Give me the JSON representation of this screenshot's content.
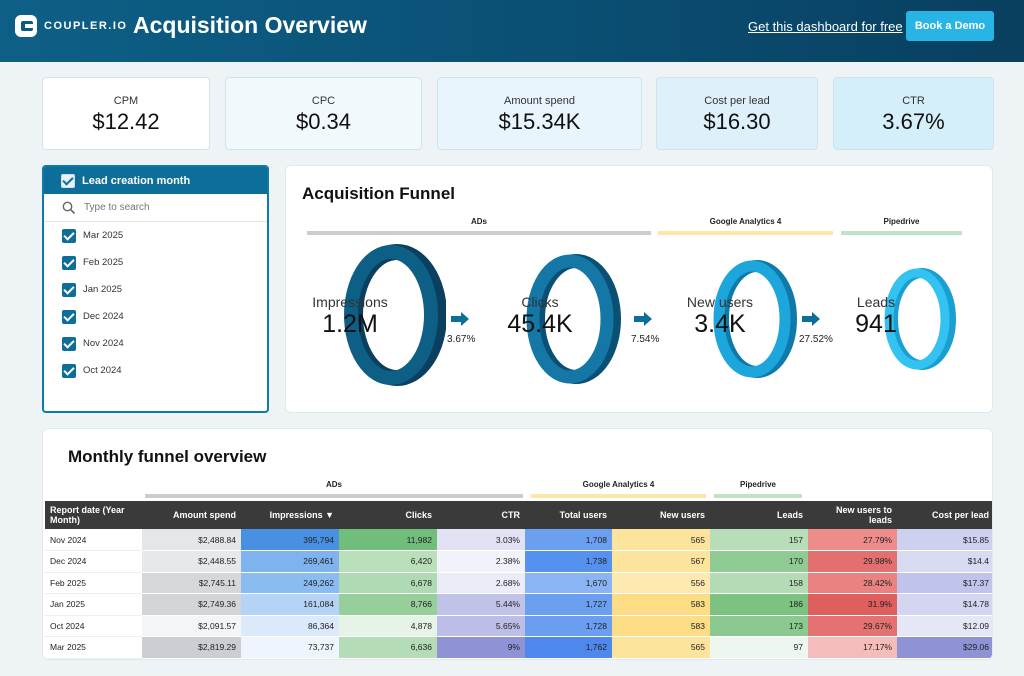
{
  "header": {
    "brand": "COUPLER.IO",
    "title": "Acquisition Overview",
    "link_label": "Get this dashboard for free",
    "demo_button": "Book a Demo"
  },
  "kpis": [
    {
      "label": "CPM",
      "value": "$12.42"
    },
    {
      "label": "CPC",
      "value": "$0.34"
    },
    {
      "label": "Amount spend",
      "value": "$15.34K"
    },
    {
      "label": "Cost per lead",
      "value": "$16.30"
    },
    {
      "label": "CTR",
      "value": "3.67%"
    }
  ],
  "filter": {
    "title": "Lead creation month",
    "search_placeholder": "Type to search",
    "items": [
      "Mar 2025",
      "Feb 2025",
      "Jan 2025",
      "Dec 2024",
      "Nov 2024",
      "Oct 2024"
    ]
  },
  "funnel": {
    "title": "Acquisition Funnel",
    "groups": [
      "ADs",
      "Google Analytics 4",
      "Pipedrive"
    ],
    "stages": [
      {
        "label": "Impressions",
        "value": "1.2M"
      },
      {
        "label": "Clicks",
        "value": "45.4K"
      },
      {
        "label": "New users",
        "value": "3.4K"
      },
      {
        "label": "Leads",
        "value": "941"
      }
    ],
    "conversions": [
      "3.67%",
      "7.54%",
      "27.52%"
    ]
  },
  "table": {
    "title": "Monthly funnel overview",
    "groups": [
      "ADs",
      "Google Analytics 4",
      "Pipedrive"
    ],
    "columns": [
      "Report date (Year Month)",
      "Amount spend",
      "Impressions ▼",
      "Clicks",
      "CTR",
      "Total users",
      "New users",
      "Leads",
      "New users to leads",
      "Cost per lead"
    ],
    "rows": [
      [
        "Nov 2024",
        "$2,488.84",
        "395,794",
        "11,982",
        "3.03%",
        "1,708",
        "565",
        "157",
        "27.79%",
        "$15.85"
      ],
      [
        "Dec 2024",
        "$2,448.55",
        "269,461",
        "6,420",
        "2.38%",
        "1,738",
        "567",
        "170",
        "29.98%",
        "$14.4"
      ],
      [
        "Feb 2025",
        "$2,745.11",
        "249,262",
        "6,678",
        "2.68%",
        "1,670",
        "556",
        "158",
        "28.42%",
        "$17.37"
      ],
      [
        "Jan 2025",
        "$2,749.36",
        "161,084",
        "8,766",
        "5.44%",
        "1,727",
        "583",
        "186",
        "31.9%",
        "$14.78"
      ],
      [
        "Oct 2024",
        "$2,091.57",
        "86,364",
        "4,878",
        "5.65%",
        "1,728",
        "583",
        "173",
        "29.67%",
        "$12.09"
      ],
      [
        "Mar 2025",
        "$2,819.29",
        "73,737",
        "6,636",
        "9%",
        "1,762",
        "565",
        "97",
        "17.17%",
        "$29.06"
      ]
    ]
  },
  "colors": {
    "header": "#0a4f74",
    "accent": "#29b4e6",
    "ads_bar": "#cccccc",
    "ga4_bar": "#fde7a6",
    "pipedrive_bar": "#bfe3c4"
  }
}
